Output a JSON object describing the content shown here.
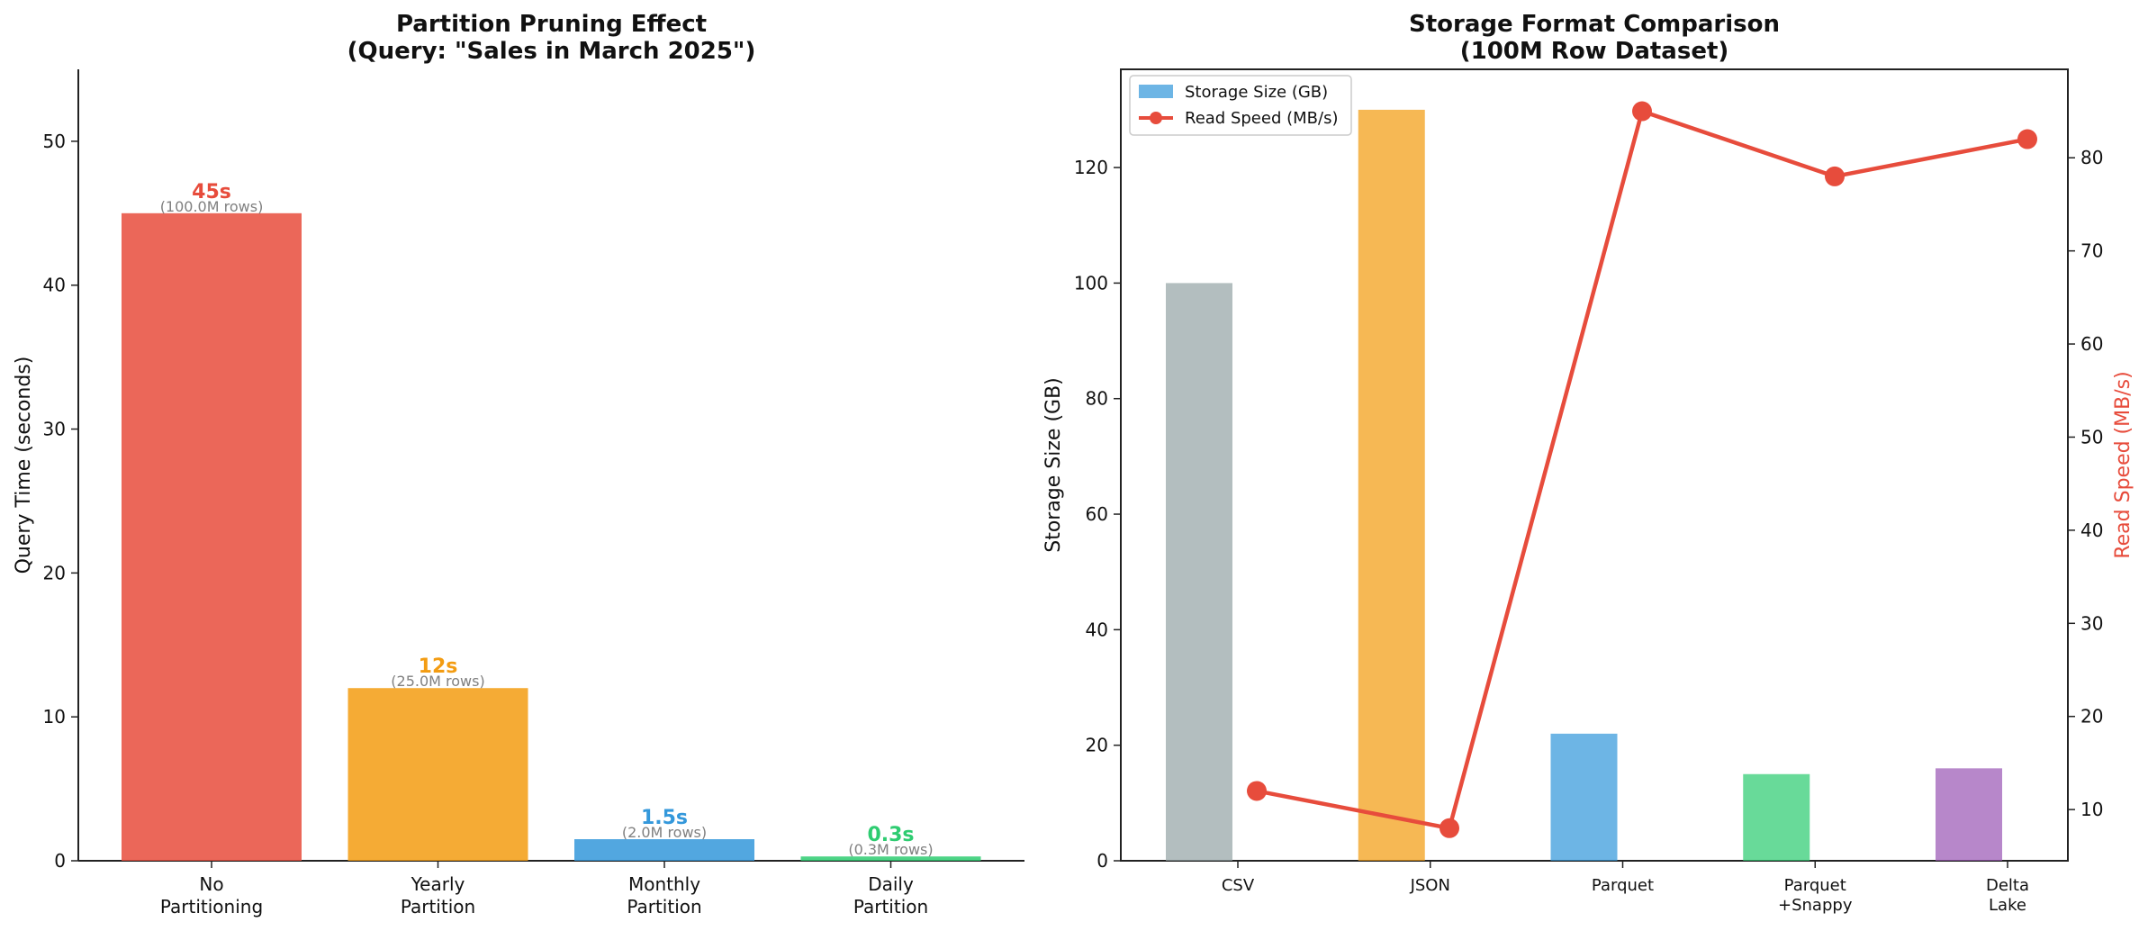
{
  "chart_data": [
    {
      "type": "bar",
      "title_lines": [
        "Partition Pruning Effect",
        "(Query: \"Sales in March 2025\")"
      ],
      "ylabel": "Query Time (seconds)",
      "xlabel": "",
      "ylim": [
        0,
        55
      ],
      "yticks": [
        0,
        10,
        20,
        30,
        40,
        50
      ],
      "categories": [
        [
          "No",
          "Partitioning"
        ],
        [
          "Yearly",
          "Partition"
        ],
        [
          "Monthly",
          "Partition"
        ],
        [
          "Daily",
          "Partition"
        ]
      ],
      "values": [
        45,
        12,
        1.5,
        0.3
      ],
      "value_labels": [
        "45s",
        "12s",
        "1.5s",
        "0.3s"
      ],
      "row_labels": [
        "(100.0M rows)",
        "(25.0M rows)",
        "(2.0M rows)",
        "(0.3M rows)"
      ],
      "colors": [
        "#e74c3c",
        "#f39c12",
        "#3498db",
        "#2ecc71"
      ],
      "label_colors": [
        "#e74c3c",
        "#f39c12",
        "#3498db",
        "#2ecc71"
      ],
      "row_label_color": "#808080",
      "grid": false
    },
    {
      "type": "bar+line",
      "title_lines": [
        "Storage Format Comparison",
        "(100M Row Dataset)"
      ],
      "ylabel": "Storage Size (GB)",
      "y2label": "Read Speed (MB/s)",
      "y2label_color": "#e74c3c",
      "ylim": [
        0,
        137
      ],
      "yticks": [
        0,
        20,
        40,
        60,
        80,
        100,
        120
      ],
      "y2lim": [
        4.5,
        89.5
      ],
      "y2ticks": [
        10,
        20,
        30,
        40,
        50,
        60,
        70,
        80
      ],
      "categories": [
        [
          "CSV"
        ],
        [
          "JSON"
        ],
        [
          "Parquet"
        ],
        [
          "Parquet",
          "+Snappy"
        ],
        [
          "Delta",
          "Lake"
        ]
      ],
      "series": [
        {
          "name": "Storage Size (GB)",
          "type": "bar",
          "values": [
            100,
            130,
            22,
            15,
            16
          ],
          "colors": [
            "#95a5a6",
            "#f39c12",
            "#3498db",
            "#2ecc71",
            "#9b59b6"
          ],
          "legend_color": "#3498db"
        },
        {
          "name": "Read Speed (MB/s)",
          "type": "line",
          "axis": "right",
          "values": [
            12,
            8,
            85,
            78,
            82
          ],
          "color": "#e74c3c"
        }
      ],
      "legend_position": "top-left",
      "grid": false
    }
  ]
}
